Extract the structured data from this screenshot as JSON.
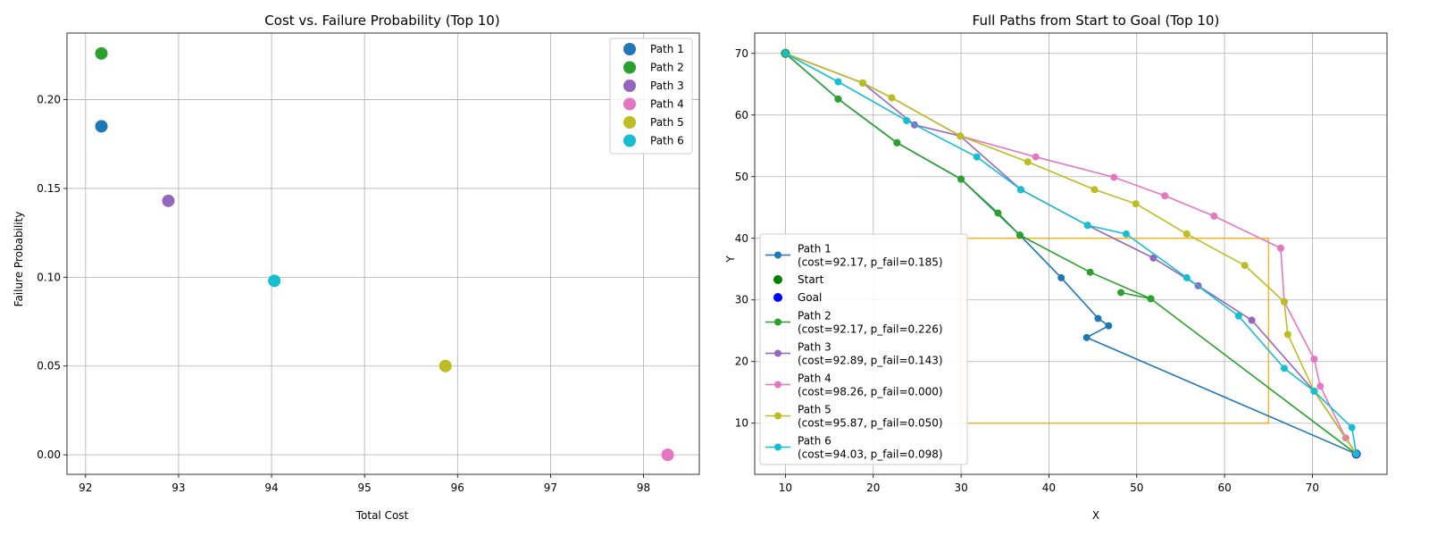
{
  "chart_data": [
    {
      "type": "scatter",
      "title": "Cost vs. Failure Probability (Top 10)",
      "xlabel": "Total Cost",
      "ylabel": "Failure Probability",
      "xlim": [
        91.8,
        98.6
      ],
      "ylim": [
        -0.011,
        0.2375
      ],
      "xticks": [
        92,
        93,
        94,
        95,
        96,
        97,
        98
      ],
      "yticks": [
        0.0,
        0.05,
        0.1,
        0.15,
        0.2
      ],
      "ytick_labels": [
        "0.00",
        "0.05",
        "0.10",
        "0.15",
        "0.20"
      ],
      "grid": true,
      "legend_position": "top-right",
      "series": [
        {
          "name": "Path 1",
          "color": "#1f77b4",
          "x": 92.17,
          "y": 0.185
        },
        {
          "name": "Path 2",
          "color": "#2ca02c",
          "x": 92.17,
          "y": 0.226
        },
        {
          "name": "Path 3",
          "color": "#9467bd",
          "x": 92.89,
          "y": 0.143
        },
        {
          "name": "Path 4",
          "color": "#e377c2",
          "x": 98.26,
          "y": 0.0
        },
        {
          "name": "Path 5",
          "color": "#bcbd22",
          "x": 95.87,
          "y": 0.05
        },
        {
          "name": "Path 6",
          "color": "#17becf",
          "x": 94.03,
          "y": 0.098
        }
      ]
    },
    {
      "type": "line",
      "title": "Full Paths from Start to Goal (Top 10)",
      "xlabel": "X",
      "ylabel": "Y",
      "xlim": [
        6.5,
        78.5
      ],
      "ylim": [
        1.7,
        73.3
      ],
      "xticks": [
        10,
        20,
        30,
        40,
        50,
        60,
        70
      ],
      "yticks": [
        10,
        20,
        30,
        40,
        50,
        60,
        70
      ],
      "grid": true,
      "legend_position": "lower-left",
      "obstacle": {
        "x": [
          30,
          65
        ],
        "y": [
          10,
          40
        ],
        "color": "#ffa500"
      },
      "start": {
        "label": "Start",
        "x": 10,
        "y": 70,
        "color": "#008000"
      },
      "goal": {
        "label": "Goal",
        "x": 75,
        "y": 5,
        "color": "#0000ff"
      },
      "legend": [
        {
          "kind": "line",
          "line1": "Path 1",
          "line2": "(cost=92.17, p_fail=0.185)",
          "color": "#1f77b4"
        },
        {
          "kind": "marker",
          "line1": "Start",
          "line2": "",
          "color": "#008000"
        },
        {
          "kind": "marker",
          "line1": "Goal",
          "line2": "",
          "color": "#0000ff"
        },
        {
          "kind": "line",
          "line1": "Path 2",
          "line2": "(cost=92.17, p_fail=0.226)",
          "color": "#2ca02c"
        },
        {
          "kind": "line",
          "line1": "Path 3",
          "line2": "(cost=92.89, p_fail=0.143)",
          "color": "#9467bd"
        },
        {
          "kind": "line",
          "line1": "Path 4",
          "line2": "(cost=98.26, p_fail=0.000)",
          "color": "#e377c2"
        },
        {
          "kind": "line",
          "line1": "Path 5",
          "line2": "(cost=95.87, p_fail=0.050)",
          "color": "#bcbd22"
        },
        {
          "kind": "line",
          "line1": "Path 6",
          "line2": "(cost=94.03, p_fail=0.098)",
          "color": "#17becf"
        }
      ],
      "series": [
        {
          "name": "Path 1",
          "color": "#1f77b4",
          "points": [
            [
              10,
              70
            ],
            [
              16,
              62.6
            ],
            [
              22.7,
              55.5
            ],
            [
              30,
              49.6
            ],
            [
              36.7,
              40.5
            ],
            [
              41.4,
              33.6
            ],
            [
              45.6,
              27
            ],
            [
              46.8,
              25.8
            ],
            [
              44.3,
              23.9
            ],
            [
              75,
              5
            ]
          ]
        },
        {
          "name": "Path 2",
          "color": "#2ca02c",
          "points": [
            [
              10,
              70
            ],
            [
              16,
              62.6
            ],
            [
              22.7,
              55.5
            ],
            [
              30,
              49.6
            ],
            [
              34.2,
              44.1
            ],
            [
              36.7,
              40.5
            ],
            [
              44.7,
              34.5
            ],
            [
              51.6,
              30.2
            ],
            [
              48.2,
              31.2
            ],
            [
              51.6,
              30.2
            ],
            [
              75,
              5
            ]
          ]
        },
        {
          "name": "Path 3",
          "color": "#9467bd",
          "points": [
            [
              10,
              70
            ],
            [
              18.8,
              65.2
            ],
            [
              24.7,
              58.4
            ],
            [
              29.9,
              56.6
            ],
            [
              36.8,
              47.9
            ],
            [
              44.4,
              42.1
            ],
            [
              51.9,
              36.8
            ],
            [
              57,
              32.3
            ],
            [
              63.1,
              26.7
            ],
            [
              70.2,
              15.2
            ],
            [
              75,
              5
            ]
          ]
        },
        {
          "name": "Path 4",
          "color": "#e377c2",
          "points": [
            [
              10,
              70
            ],
            [
              18.8,
              65.2
            ],
            [
              22.1,
              62.8
            ],
            [
              29.9,
              56.6
            ],
            [
              38.5,
              53.2
            ],
            [
              47.4,
              49.9
            ],
            [
              53.2,
              46.9
            ],
            [
              58.8,
              43.6
            ],
            [
              66.4,
              38.4
            ],
            [
              66.8,
              29.7
            ],
            [
              70.2,
              20.4
            ],
            [
              70.9,
              16
            ],
            [
              73.8,
              7.6
            ],
            [
              75,
              5
            ]
          ]
        },
        {
          "name": "Path 5",
          "color": "#bcbd22",
          "points": [
            [
              10,
              70
            ],
            [
              18.8,
              65.2
            ],
            [
              22.1,
              62.8
            ],
            [
              29.9,
              56.6
            ],
            [
              37.6,
              52.4
            ],
            [
              45.2,
              47.9
            ],
            [
              49.9,
              45.6
            ],
            [
              55.7,
              40.7
            ],
            [
              62.3,
              35.6
            ],
            [
              66.8,
              29.7
            ],
            [
              67.2,
              24.4
            ],
            [
              70.2,
              15.2
            ],
            [
              75,
              5
            ]
          ]
        },
        {
          "name": "Path 6",
          "color": "#17becf",
          "points": [
            [
              10,
              70
            ],
            [
              16,
              65.4
            ],
            [
              23.8,
              59.1
            ],
            [
              31.8,
              53.2
            ],
            [
              36.8,
              47.9
            ],
            [
              44.4,
              42.1
            ],
            [
              48.8,
              40.7
            ],
            [
              55.7,
              33.6
            ],
            [
              61.6,
              27.4
            ],
            [
              66.8,
              18.9
            ],
            [
              70.2,
              15.2
            ],
            [
              74.5,
              9.3
            ],
            [
              75,
              5
            ]
          ]
        }
      ]
    }
  ]
}
